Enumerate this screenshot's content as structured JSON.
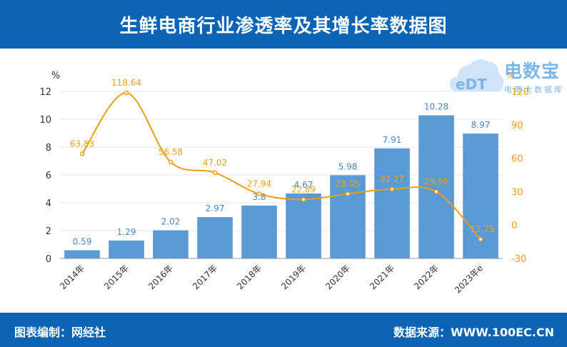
{
  "header": {
    "title": "生鲜电商行业渗透率及其增长率数据图"
  },
  "footer": {
    "left": "图表编制：网经社",
    "right": "数据来源：WWW.100EC.CN"
  },
  "logo": {
    "brand": "电数宝",
    "sub": "电商大数据库",
    "mark": "eDT"
  },
  "colors": {
    "bar": "#5b9bd5",
    "line": "#f39c12",
    "header": "#0a63b5",
    "bar_label": "#4a86c5",
    "line_label": "#e8a317"
  },
  "chart_data": {
    "type": "bar+line",
    "categories": [
      "2014年",
      "2015年",
      "2016年",
      "2017年",
      "2018年",
      "2019年",
      "2020年",
      "2021年",
      "2022年",
      "2023年e"
    ],
    "series": [
      {
        "type": "bar",
        "axis": "left",
        "values": [
          0.59,
          1.29,
          2.02,
          2.97,
          3.8,
          4.67,
          5.98,
          7.91,
          10.28,
          8.97
        ],
        "labels": [
          "0.59",
          "1.29",
          "2.02",
          "2.97",
          "3.8",
          "4.67",
          "5.98",
          "7.91",
          "10.28",
          "8.97"
        ]
      },
      {
        "type": "line",
        "axis": "right",
        "smooth": true,
        "values": [
          63.83,
          118.64,
          56.58,
          47.02,
          27.94,
          22.89,
          28.05,
          32.27,
          29.96,
          -12.75
        ],
        "labels": [
          "63.83",
          "118.64",
          "56.58",
          "47.02",
          "27.94",
          "22.89",
          "28.05",
          "32.27",
          "29.96",
          "-12.75"
        ]
      }
    ],
    "y_left": {
      "unit": "%",
      "min": 0,
      "max": 12,
      "ticks": [
        "0",
        "2",
        "4",
        "6",
        "8",
        "10",
        "12"
      ]
    },
    "y_right": {
      "unit": "%",
      "min": -30,
      "max": 120,
      "ticks": [
        "-30",
        "0",
        "30",
        "60",
        "90",
        "120"
      ]
    },
    "grid": "horizontal",
    "legend": "none"
  }
}
